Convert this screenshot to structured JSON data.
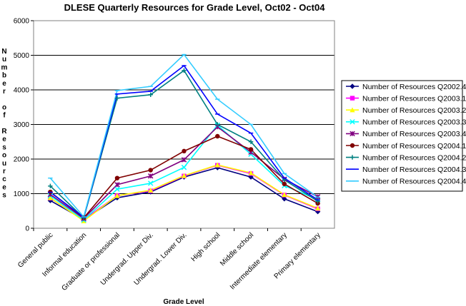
{
  "chart_data": {
    "type": "line",
    "title": "DLESE Quarterly Resources for Grade Level, Oct02 - Oct04",
    "xlabel": "Grade Level",
    "ylabel": "Number of Resources",
    "ylim": [
      0,
      6000
    ],
    "yticks": [
      "0",
      "1000",
      "2000",
      "3000",
      "4000",
      "5000",
      "6000"
    ],
    "grid": true,
    "legend_position": "right",
    "categories": [
      "General public",
      "Informal education",
      "Graduate or professional",
      "Undergrad. Upper Div.",
      "Undergrad. Lower Div.",
      "High school",
      "Middle school",
      "Intermediate elementary",
      "Primary elementary"
    ],
    "series": [
      {
        "name": "Number of Resources Q2002.4",
        "color": "#000080",
        "marker": "diamond",
        "values": [
          800,
          250,
          880,
          1050,
          1480,
          1750,
          1480,
          850,
          480
        ]
      },
      {
        "name": "Number of Resources Q2003.1",
        "color": "#ff00ff",
        "marker": "square",
        "values": [
          870,
          250,
          940,
          1080,
          1510,
          1820,
          1580,
          960,
          560
        ]
      },
      {
        "name": "Number of Resources Q2003.2",
        "color": "#ffff00",
        "marker": "triangle",
        "values": [
          880,
          210,
          940,
          1100,
          1520,
          1830,
          1600,
          970,
          580
        ]
      },
      {
        "name": "Number of Resources Q2003.3",
        "color": "#00ffff",
        "marker": "x",
        "values": [
          940,
          240,
          1130,
          1300,
          1760,
          2980,
          2140,
          1230,
          830
        ]
      },
      {
        "name": "Number of Resources Q2003.4",
        "color": "#800080",
        "marker": "star",
        "values": [
          980,
          280,
          1260,
          1510,
          1980,
          2930,
          2200,
          1420,
          910
        ]
      },
      {
        "name": "Number of Resources Q2004.1",
        "color": "#800000",
        "marker": "circle",
        "values": [
          1050,
          300,
          1450,
          1680,
          2230,
          2660,
          2280,
          1280,
          720
        ]
      },
      {
        "name": "Number of Resources Q2004.2",
        "color": "#008080",
        "marker": "plus",
        "values": [
          1220,
          300,
          3760,
          3860,
          4560,
          3000,
          2500,
          1400,
          780
        ]
      },
      {
        "name": "Number of Resources Q2004.3",
        "color": "#0000ff",
        "marker": "dash",
        "values": [
          1040,
          320,
          3880,
          3960,
          4700,
          3300,
          2750,
          1450,
          820
        ]
      },
      {
        "name": "Number of Resources Q2004.4",
        "color": "#33ccff",
        "marker": "dash",
        "values": [
          1450,
          330,
          3980,
          4100,
          5020,
          3730,
          3000,
          1580,
          900
        ]
      }
    ]
  }
}
